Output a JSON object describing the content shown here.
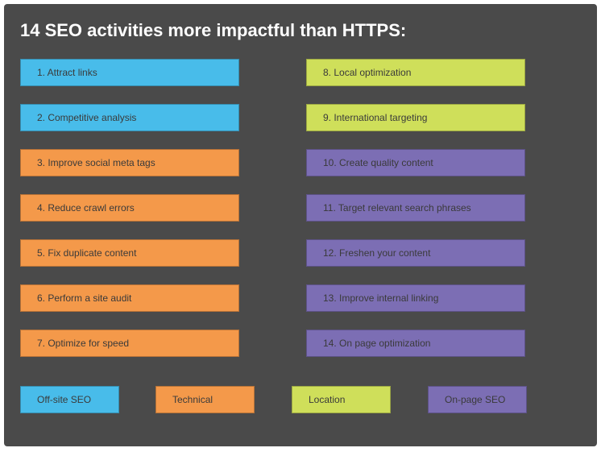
{
  "title": "14 SEO activities more impactful than HTTPS:",
  "colors": {
    "offsite": "#48bcea",
    "technical": "#f4994a",
    "location": "#cfdf5a",
    "onpage": "#7c6eb4",
    "panel": "#4a4a4a"
  },
  "activities": [
    {
      "label": "1. Attract links",
      "category": "offsite"
    },
    {
      "label": "2. Competitive analysis",
      "category": "offsite"
    },
    {
      "label": "3. Improve social meta tags",
      "category": "technical"
    },
    {
      "label": "4. Reduce crawl errors",
      "category": "technical"
    },
    {
      "label": "5. Fix duplicate content",
      "category": "technical"
    },
    {
      "label": "6. Perform a site audit",
      "category": "technical"
    },
    {
      "label": "7. Optimize for speed",
      "category": "technical"
    },
    {
      "label": "8. Local optimization",
      "category": "location"
    },
    {
      "label": "9. International targeting",
      "category": "location"
    },
    {
      "label": "10. Create quality content",
      "category": "onpage"
    },
    {
      "label": "11. Target relevant search phrases",
      "category": "onpage"
    },
    {
      "label": "12. Freshen your content",
      "category": "onpage"
    },
    {
      "label": "13. Improve internal linking",
      "category": "onpage"
    },
    {
      "label": "14. On page optimization",
      "category": "onpage"
    }
  ],
  "legend": [
    {
      "label": "Off-site SEO",
      "category": "offsite"
    },
    {
      "label": "Technical",
      "category": "technical"
    },
    {
      "label": "Location",
      "category": "location"
    },
    {
      "label": "On-page SEO",
      "category": "onpage"
    }
  ]
}
